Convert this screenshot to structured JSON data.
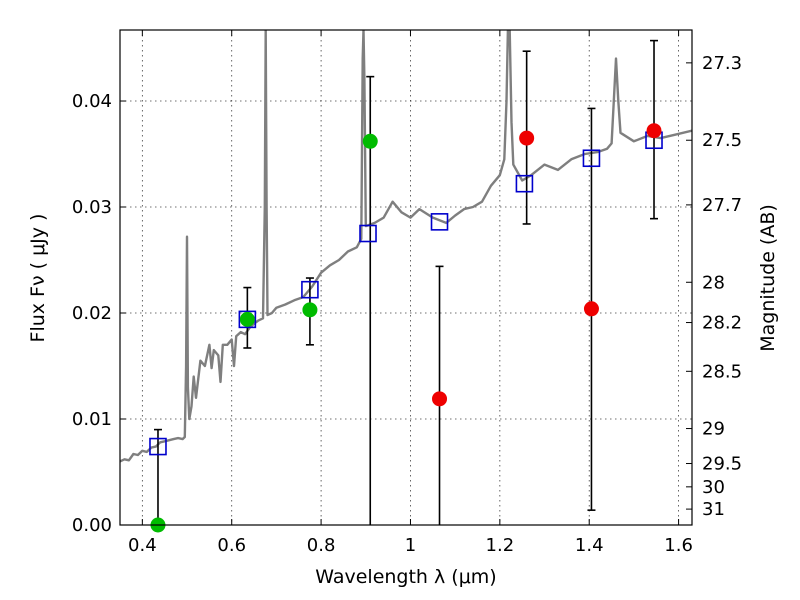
{
  "chart_data": {
    "type": "scatter",
    "title": "",
    "xlabel": "Wavelength  λ (μm)",
    "ylabel": "Flux  Fν  ( μJy )",
    "y2label": "Magnitude (AB)",
    "xlim": [
      0.35,
      1.63
    ],
    "ylim": [
      0,
      0.0467
    ],
    "x_ticks": [
      0.4,
      0.6,
      0.8,
      1.0,
      1.2,
      1.4,
      1.6
    ],
    "x_tick_labels": [
      "0.4",
      "0.6",
      "0.8",
      "1",
      "1.2",
      "1.4",
      "1.6"
    ],
    "y_ticks": [
      0,
      0.01,
      0.02,
      0.03,
      0.04
    ],
    "y_tick_labels": [
      "0.00",
      "0.01",
      "0.02",
      "0.03",
      "0.04"
    ],
    "magnitude_ticks": [
      {
        "label": "27.3",
        "flux": 0.0436
      },
      {
        "label": "27.5",
        "flux": 0.0363
      },
      {
        "label": "27.7",
        "flux": 0.0302
      },
      {
        "label": "28",
        "flux": 0.0229
      },
      {
        "label": "28.2",
        "flux": 0.0191
      },
      {
        "label": "28.5",
        "flux": 0.0145
      },
      {
        "label": "29",
        "flux": 0.0091
      },
      {
        "label": "29.5",
        "flux": 0.0058
      },
      {
        "label": "30",
        "flux": 0.0036
      },
      {
        "label": "31",
        "flux": 0.0015
      }
    ],
    "grid": true,
    "colors": {
      "model_line": "#7f7f7f",
      "model_points": "#0000cc",
      "detection": "#00bb00",
      "upper_limit": "#ee0000",
      "error_bar": "#000000"
    },
    "series": [
      {
        "kind": "line",
        "points": [
          [
            0.35,
            0.006
          ],
          [
            0.36,
            0.0062
          ],
          [
            0.37,
            0.0061
          ],
          [
            0.38,
            0.0067
          ],
          [
            0.39,
            0.0066
          ],
          [
            0.4,
            0.007
          ],
          [
            0.41,
            0.0069
          ],
          [
            0.42,
            0.0073
          ],
          [
            0.43,
            0.0074
          ],
          [
            0.44,
            0.0078
          ],
          [
            0.45,
            0.0079
          ],
          [
            0.46,
            0.008
          ],
          [
            0.47,
            0.0081
          ],
          [
            0.48,
            0.0082
          ],
          [
            0.49,
            0.0081
          ],
          [
            0.495,
            0.0083
          ],
          [
            0.498,
            0.015
          ],
          [
            0.5,
            0.0272
          ],
          [
            0.502,
            0.013
          ],
          [
            0.505,
            0.01
          ],
          [
            0.51,
            0.0112
          ],
          [
            0.515,
            0.014
          ],
          [
            0.52,
            0.012
          ],
          [
            0.53,
            0.0155
          ],
          [
            0.54,
            0.015
          ],
          [
            0.55,
            0.017
          ],
          [
            0.555,
            0.0148
          ],
          [
            0.56,
            0.0165
          ],
          [
            0.57,
            0.016
          ],
          [
            0.575,
            0.0135
          ],
          [
            0.58,
            0.017
          ],
          [
            0.59,
            0.017
          ],
          [
            0.6,
            0.0175
          ],
          [
            0.605,
            0.015
          ],
          [
            0.61,
            0.0178
          ],
          [
            0.62,
            0.0182
          ],
          [
            0.63,
            0.018
          ],
          [
            0.64,
            0.0186
          ],
          [
            0.65,
            0.019
          ],
          [
            0.66,
            0.0193
          ],
          [
            0.67,
            0.0195
          ],
          [
            0.674,
            0.03
          ],
          [
            0.676,
            0.0467
          ],
          [
            0.678,
            0.03
          ],
          [
            0.68,
            0.0198
          ],
          [
            0.69,
            0.02
          ],
          [
            0.7,
            0.0205
          ],
          [
            0.72,
            0.0208
          ],
          [
            0.74,
            0.0212
          ],
          [
            0.76,
            0.0215
          ],
          [
            0.78,
            0.0225
          ],
          [
            0.8,
            0.0238
          ],
          [
            0.82,
            0.0245
          ],
          [
            0.84,
            0.025
          ],
          [
            0.86,
            0.0258
          ],
          [
            0.88,
            0.0262
          ],
          [
            0.89,
            0.027
          ],
          [
            0.893,
            0.044
          ],
          [
            0.895,
            0.0467
          ],
          [
            0.897,
            0.042
          ],
          [
            0.9,
            0.0282
          ],
          [
            0.92,
            0.0285
          ],
          [
            0.94,
            0.029
          ],
          [
            0.96,
            0.0305
          ],
          [
            0.98,
            0.0295
          ],
          [
            1.0,
            0.029
          ],
          [
            1.02,
            0.0298
          ],
          [
            1.05,
            0.029
          ],
          [
            1.08,
            0.0285
          ],
          [
            1.1,
            0.0292
          ],
          [
            1.12,
            0.0298
          ],
          [
            1.14,
            0.03
          ],
          [
            1.16,
            0.0305
          ],
          [
            1.18,
            0.032
          ],
          [
            1.2,
            0.033
          ],
          [
            1.21,
            0.0345
          ],
          [
            1.215,
            0.04
          ],
          [
            1.218,
            0.0467
          ],
          [
            1.222,
            0.0467
          ],
          [
            1.226,
            0.038
          ],
          [
            1.23,
            0.034
          ],
          [
            1.25,
            0.0325
          ],
          [
            1.27,
            0.033
          ],
          [
            1.3,
            0.034
          ],
          [
            1.33,
            0.0335
          ],
          [
            1.36,
            0.0345
          ],
          [
            1.39,
            0.035
          ],
          [
            1.42,
            0.0352
          ],
          [
            1.44,
            0.0355
          ],
          [
            1.45,
            0.036
          ],
          [
            1.455,
            0.04
          ],
          [
            1.46,
            0.044
          ],
          [
            1.465,
            0.04
          ],
          [
            1.47,
            0.037
          ],
          [
            1.5,
            0.0362
          ],
          [
            1.53,
            0.0367
          ],
          [
            1.56,
            0.0365
          ],
          [
            1.59,
            0.0368
          ],
          [
            1.63,
            0.0372
          ]
        ]
      },
      {
        "kind": "model_points",
        "x": [
          0.435,
          0.635,
          0.775,
          0.905,
          1.065,
          1.255,
          1.405,
          1.545
        ],
        "y": [
          0.0074,
          0.0194,
          0.0222,
          0.0275,
          0.0286,
          0.0322,
          0.0346,
          0.0363
        ]
      },
      {
        "kind": "detections",
        "x": [
          0.435,
          0.635,
          0.775,
          0.91
        ],
        "y": [
          0.0,
          0.0194,
          0.0203,
          0.0362
        ],
        "err_low": [
          0.0,
          0.0167,
          0.017,
          0.0
        ],
        "err_high": [
          0.009,
          0.0224,
          0.0233,
          0.0423
        ]
      },
      {
        "kind": "upper_limits",
        "x": [
          1.065,
          1.26,
          1.405,
          1.545
        ],
        "y": [
          0.0119,
          0.0365,
          0.0204,
          0.0372
        ],
        "err_low": [
          0.0,
          0.0284,
          0.0014,
          0.0289
        ],
        "err_high": [
          0.0244,
          0.0447,
          0.0393,
          0.0457
        ]
      }
    ]
  }
}
